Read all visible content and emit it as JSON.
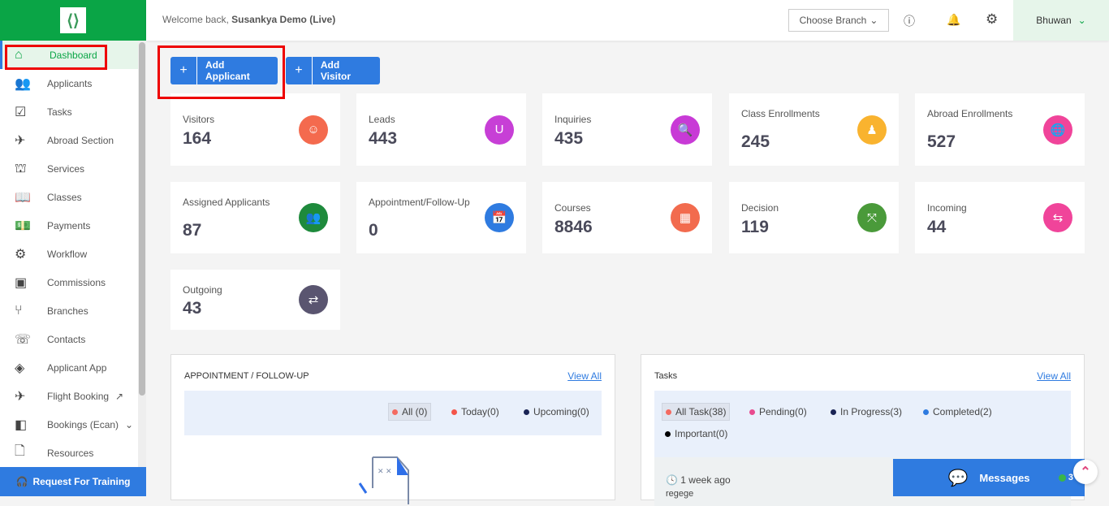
{
  "header": {
    "welcome_prefix": "Welcome back, ",
    "org": "Susankya Demo (Live)",
    "branch_label": "Choose Branch",
    "user": "Bhuwan"
  },
  "sidebar": {
    "items": [
      {
        "label": "Dashboard",
        "icon": "home-icon",
        "glyph": "⌂"
      },
      {
        "label": "Applicants",
        "icon": "users-icon",
        "glyph": "👥"
      },
      {
        "label": "Tasks",
        "icon": "clipboard-check-icon",
        "glyph": "☑"
      },
      {
        "label": "Abroad Section",
        "icon": "plane-icon",
        "glyph": "✈"
      },
      {
        "label": "Services",
        "icon": "service-bell-icon",
        "glyph": "⛫"
      },
      {
        "label": "Classes",
        "icon": "book-icon",
        "glyph": "📖"
      },
      {
        "label": "Payments",
        "icon": "money-icon",
        "glyph": "💵"
      },
      {
        "label": "Workflow",
        "icon": "workflow-gear-icon",
        "glyph": "⚙"
      },
      {
        "label": "Commissions",
        "icon": "commission-icon",
        "glyph": "▣"
      },
      {
        "label": "Branches",
        "icon": "branch-icon",
        "glyph": "⑂"
      },
      {
        "label": "Contacts",
        "icon": "contact-card-icon",
        "glyph": "☏"
      },
      {
        "label": "Applicant App",
        "icon": "app-icon",
        "glyph": "◈"
      },
      {
        "label": "Flight Booking",
        "icon": "flight-icon",
        "glyph": "✈",
        "extra": "↗"
      },
      {
        "label": "Bookings (Ecan)",
        "icon": "bookings-icon",
        "glyph": "◧",
        "extra": "⌄"
      },
      {
        "label": "Resources",
        "icon": "file-icon",
        "glyph": "🗋"
      }
    ],
    "training": "Request For Training"
  },
  "actions": {
    "add_applicant": "Add Applicant",
    "add_visitor": "Add Visitor",
    "plus": "+"
  },
  "stats": [
    {
      "title": "Visitors",
      "value": "164",
      "color": "#f46a4e",
      "icon": "visitor-icon",
      "glyph": "☺"
    },
    {
      "title": "Leads",
      "value": "443",
      "color": "#c73fd6",
      "icon": "magnet-icon",
      "glyph": "U"
    },
    {
      "title": "Inquiries",
      "value": "435",
      "color": "#c83ad6",
      "icon": "inquiry-search-icon",
      "glyph": "🔍"
    },
    {
      "title": "Class Enrollments",
      "value": "245",
      "color": "#f9b32f",
      "icon": "class-icon",
      "glyph": "♟"
    },
    {
      "title": "Abroad Enrollments",
      "value": "527",
      "color": "#f0449a",
      "icon": "globe-graduation-icon",
      "glyph": "🌐"
    },
    {
      "title": "Assigned Applicants",
      "value": "87",
      "color": "#1e8a3c",
      "icon": "assigned-users-icon",
      "glyph": "👥"
    },
    {
      "title": "Appointment/Follow-Up",
      "value": "0",
      "color": "#2f7be0",
      "icon": "calendar-icon",
      "glyph": "📅"
    },
    {
      "title": "Courses",
      "value": "8846",
      "color": "#f26b4e",
      "icon": "course-board-icon",
      "glyph": "▦"
    },
    {
      "title": "Decision",
      "value": "119",
      "color": "#4a9a3a",
      "icon": "decision-arrows-icon",
      "glyph": "⤧"
    },
    {
      "title": "Incoming",
      "value": "44",
      "color": "#f0449a",
      "icon": "incoming-icon",
      "glyph": "⇆"
    },
    {
      "title": "Outgoing",
      "value": "43",
      "color": "#5a5570",
      "icon": "outgoing-icon",
      "glyph": "⇄"
    }
  ],
  "appointments": {
    "title": "APPOINTMENT / FOLLOW-UP",
    "view_all": "View All",
    "filters": [
      {
        "label": "All (0)",
        "color": "#f46a60"
      },
      {
        "label": "Today(0)",
        "color": "#f4554a"
      },
      {
        "label": "Upcoming(0)",
        "color": "#1a2455"
      }
    ]
  },
  "tasks": {
    "title": "Tasks",
    "view_all": "View All",
    "filters": [
      {
        "label": "All Task(38)",
        "color": "#f46a60"
      },
      {
        "label": "Pending(0)",
        "color": "#e84b8f"
      },
      {
        "label": "In Progress(3)",
        "color": "#1a2455"
      },
      {
        "label": "Completed(2)",
        "color": "#2f7be0"
      },
      {
        "label": "Important(0)",
        "color": "#000000"
      }
    ],
    "item_time": "1 week ago",
    "item_text": "regege"
  },
  "messages": {
    "label": "Messages",
    "count": "3"
  }
}
